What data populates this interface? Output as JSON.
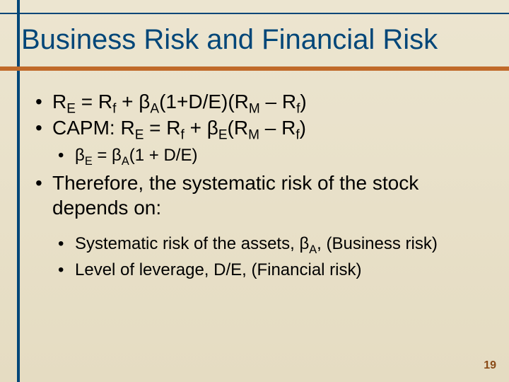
{
  "title": "Business Risk and Financial Risk",
  "bullets": {
    "b1": {
      "pre": "R",
      "s1": "E",
      "mid1": " = R",
      "s2": "f",
      "mid2": " + β",
      "s3": "A",
      "mid3": "(1+D/E)(R",
      "s4": "M",
      "mid4": " – R",
      "s5": "f",
      "post": ")"
    },
    "b2": {
      "pre": "CAPM: R",
      "s1": "E",
      "mid1": " = R",
      "s2": "f",
      "mid2": " + β",
      "s3": "E",
      "mid3": "(R",
      "s4": "M",
      "mid4": " – R",
      "s5": "f",
      "post": ")"
    },
    "b2a": {
      "pre": "β",
      "s1": "E",
      "mid1": " = β",
      "s2": "A",
      "post": "(1 + D/E)"
    },
    "b3": "Therefore, the systematic risk of the stock depends on:",
    "b3a": {
      "pre": "Systematic risk of the assets, β",
      "s1": "A",
      "post": ", (Business risk)"
    },
    "b3b": "Level of leverage, D/E, (Financial risk)"
  },
  "pagenum": "19",
  "colors": {
    "heading": "#004678",
    "accent": "#c06a2a",
    "pagenum": "#8a4a16",
    "bg_top": "#ece5d0",
    "bg_bottom": "#e5dcc2"
  },
  "fontsizes": {
    "title": 40,
    "lvl1": 28,
    "lvl2": 24,
    "pagenum": 16
  }
}
